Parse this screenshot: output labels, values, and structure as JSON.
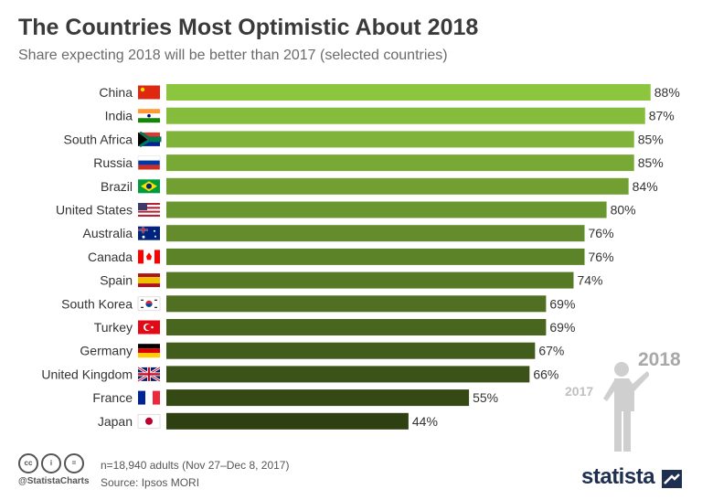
{
  "title": "The Countries Most Optimistic About 2018",
  "subtitle": "Share expecting 2018 will be better than 2017 (selected countries)",
  "chart_data": {
    "type": "bar",
    "orientation": "horizontal",
    "categories": [
      "China",
      "India",
      "South Africa",
      "Russia",
      "Brazil",
      "United States",
      "Australia",
      "Canada",
      "Spain",
      "South Korea",
      "Turkey",
      "Germany",
      "United Kingdom",
      "France",
      "Japan"
    ],
    "values": [
      88,
      87,
      85,
      85,
      84,
      80,
      76,
      76,
      74,
      69,
      69,
      67,
      66,
      55,
      44
    ],
    "value_labels": [
      "88%",
      "87%",
      "85%",
      "85%",
      "84%",
      "80%",
      "76%",
      "76%",
      "74%",
      "69%",
      "69%",
      "67%",
      "66%",
      "55%",
      "44%"
    ],
    "xlim": [
      0,
      100
    ],
    "xlabel": "",
    "ylabel": "",
    "grid": false,
    "legend": "none",
    "color_start": "#8cc63f",
    "color_end": "#2e3f12"
  },
  "flags": [
    "china-flag-icon",
    "india-flag-icon",
    "south-africa-flag-icon",
    "russia-flag-icon",
    "brazil-flag-icon",
    "usa-flag-icon",
    "australia-flag-icon",
    "canada-flag-icon",
    "spain-flag-icon",
    "south-korea-flag-icon",
    "turkey-flag-icon",
    "germany-flag-icon",
    "uk-flag-icon",
    "france-flag-icon",
    "japan-flag-icon"
  ],
  "illustration": {
    "year_new": "2018",
    "year_old": "2017"
  },
  "footer": {
    "note": "n=18,940 adults (Nov 27–Dec 8, 2017)",
    "source": "Source: Ipsos MORI",
    "handle": "@StatistaCharts",
    "brand": "statista",
    "cc_icons": [
      "cc",
      "i",
      "="
    ]
  }
}
